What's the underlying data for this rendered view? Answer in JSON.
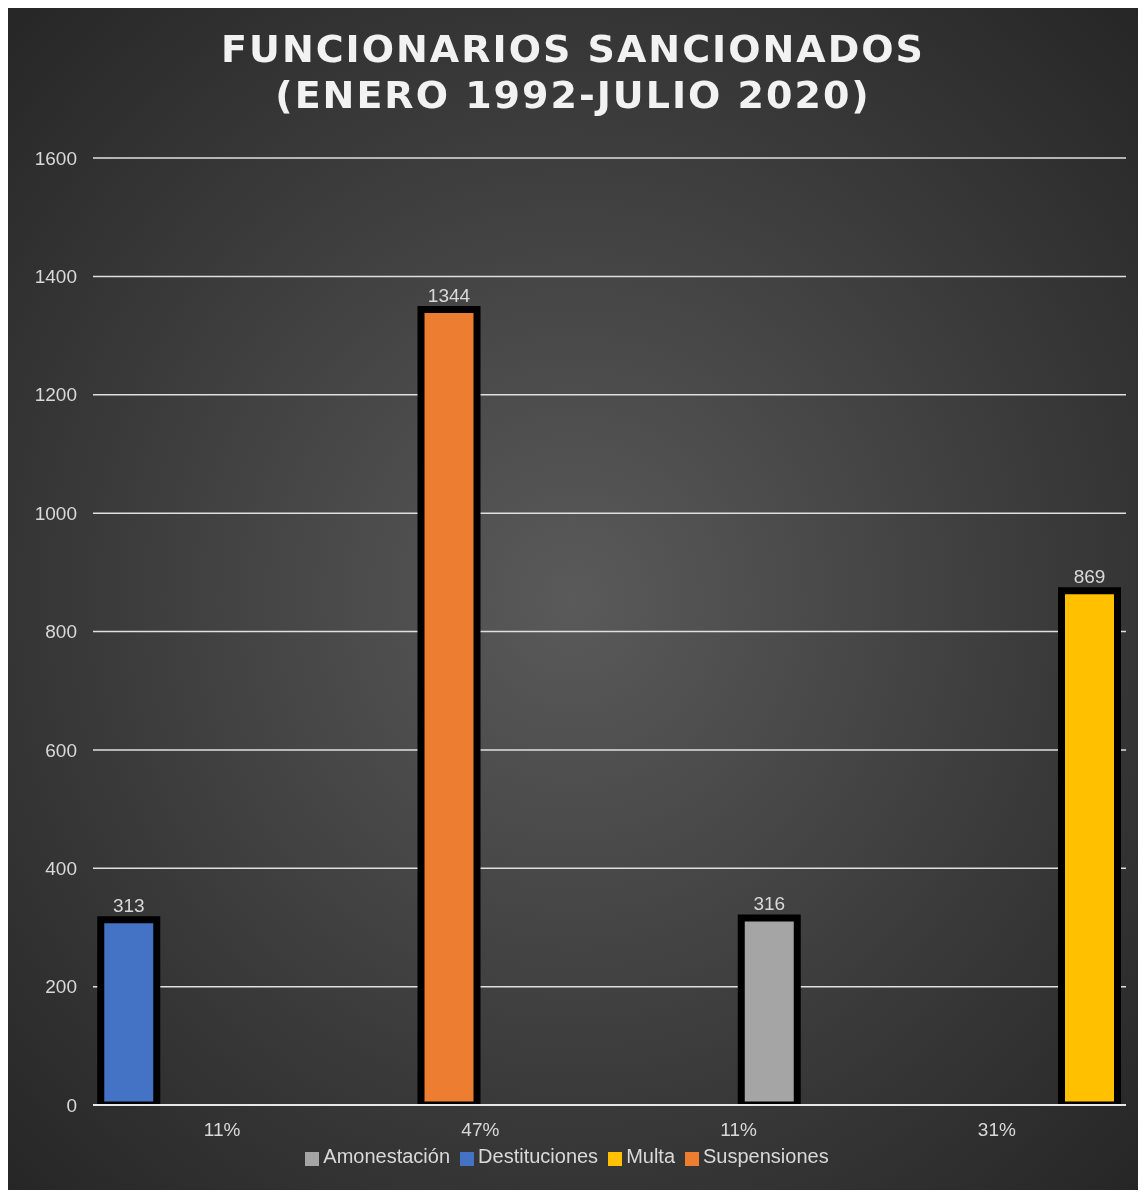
{
  "chart_data": {
    "type": "bar",
    "title": "FUNCIONARIOS SANCIONADOS (ENERO 1992-JULIO 2020)",
    "categories": [
      "11%",
      "47%",
      "11%",
      "31%"
    ],
    "series": [
      {
        "name": "Destituciones",
        "color": "#4472c4",
        "values": [
          313,
          null,
          null,
          null
        ]
      },
      {
        "name": "Suspensiones",
        "color": "#ed7d31",
        "values": [
          null,
          1344,
          null,
          null
        ]
      },
      {
        "name": "Amonestación",
        "color": "#a5a5a5",
        "values": [
          null,
          null,
          316,
          null
        ]
      },
      {
        "name": "Multa",
        "color": "#ffc000",
        "values": [
          null,
          null,
          null,
          869
        ]
      }
    ],
    "ylim": [
      0,
      1600
    ],
    "yticks": [
      0,
      200,
      400,
      600,
      800,
      1000,
      1200,
      1400,
      1600
    ],
    "grid": "y",
    "legend": "bottom",
    "data_labels": true
  }
}
